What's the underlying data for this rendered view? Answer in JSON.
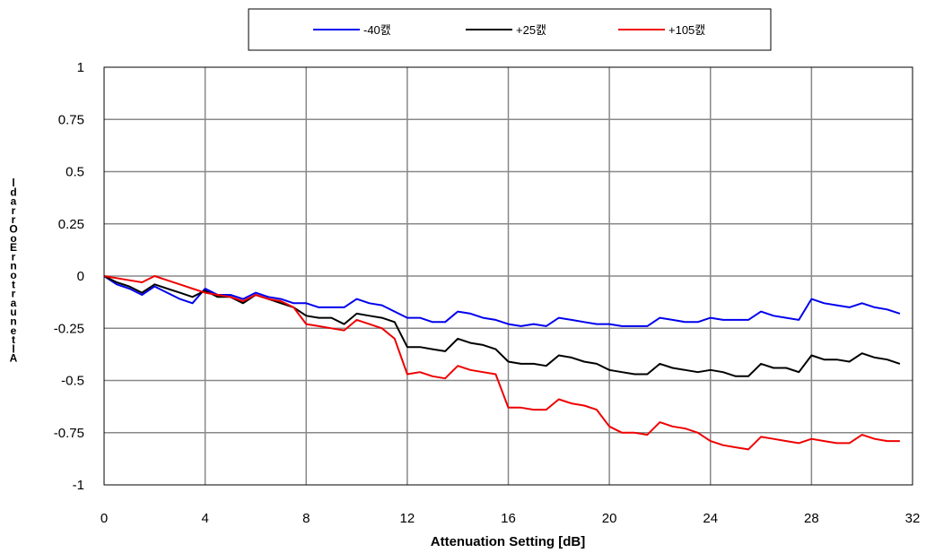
{
  "chart_data": {
    "type": "line",
    "xlabel": "Attenuation Setting [dB]",
    "ylabel": "Error in Relative Phase [deg]",
    "ylabel_rendered": "ldarrOoErnotraunetlA",
    "xlim": [
      0,
      32
    ],
    "ylim": [
      -1,
      1
    ],
    "xticks": [
      0,
      4,
      8,
      12,
      16,
      20,
      24,
      28,
      32
    ],
    "yticks": [
      1,
      0.75,
      0.5,
      0.25,
      0,
      -0.25,
      -0.5,
      -0.75,
      -1
    ],
    "ytick_labels": [
      "1",
      "0.75",
      "0.5",
      "0.25",
      "0",
      "-0.25",
      "-0.5",
      "-0.75",
      "-1"
    ],
    "grid": true,
    "legend_position": "top",
    "series": [
      {
        "name": "-40캜",
        "color": "#0000ee",
        "x": [
          0,
          0.5,
          1,
          1.5,
          2,
          2.5,
          3,
          3.5,
          4,
          4.5,
          5,
          5.5,
          6,
          6.5,
          7,
          7.5,
          8,
          8.5,
          9,
          9.5,
          10,
          10.5,
          11,
          11.5,
          12,
          12.5,
          13,
          13.5,
          14,
          14.5,
          15,
          15.5,
          16,
          16.5,
          17,
          17.5,
          18,
          18.5,
          19,
          19.5,
          20,
          20.5,
          21,
          21.5,
          22,
          22.5,
          23,
          23.5,
          24,
          24.5,
          25,
          25.5,
          26,
          26.5,
          27,
          27.5,
          28,
          28.5,
          29,
          29.5,
          30,
          30.5,
          31,
          31.5
        ],
        "values": [
          0,
          -0.04,
          -0.06,
          -0.09,
          -0.05,
          -0.08,
          -0.11,
          -0.13,
          -0.06,
          -0.09,
          -0.09,
          -0.11,
          -0.08,
          -0.1,
          -0.11,
          -0.13,
          -0.13,
          -0.15,
          -0.15,
          -0.15,
          -0.11,
          -0.13,
          -0.14,
          -0.17,
          -0.2,
          -0.2,
          -0.22,
          -0.22,
          -0.17,
          -0.18,
          -0.2,
          -0.21,
          -0.23,
          -0.24,
          -0.23,
          -0.24,
          -0.2,
          -0.21,
          -0.22,
          -0.23,
          -0.23,
          -0.24,
          -0.24,
          -0.24,
          -0.2,
          -0.21,
          -0.22,
          -0.22,
          -0.2,
          -0.21,
          -0.21,
          -0.21,
          -0.17,
          -0.19,
          -0.2,
          -0.21,
          -0.11,
          -0.13,
          -0.14,
          -0.15,
          -0.13,
          -0.15,
          -0.16,
          -0.18
        ]
      },
      {
        "name": "+25캜",
        "color": "#000000",
        "x": [
          0,
          0.5,
          1,
          1.5,
          2,
          2.5,
          3,
          3.5,
          4,
          4.5,
          5,
          5.5,
          6,
          6.5,
          7,
          7.5,
          8,
          8.5,
          9,
          9.5,
          10,
          10.5,
          11,
          11.5,
          12,
          12.5,
          13,
          13.5,
          14,
          14.5,
          15,
          15.5,
          16,
          16.5,
          17,
          17.5,
          18,
          18.5,
          19,
          19.5,
          20,
          20.5,
          21,
          21.5,
          22,
          22.5,
          23,
          23.5,
          24,
          24.5,
          25,
          25.5,
          26,
          26.5,
          27,
          27.5,
          28,
          28.5,
          29,
          29.5,
          30,
          30.5,
          31,
          31.5
        ],
        "values": [
          0,
          -0.03,
          -0.05,
          -0.08,
          -0.04,
          -0.06,
          -0.08,
          -0.1,
          -0.07,
          -0.1,
          -0.1,
          -0.13,
          -0.09,
          -0.11,
          -0.13,
          -0.15,
          -0.19,
          -0.2,
          -0.2,
          -0.23,
          -0.18,
          -0.19,
          -0.2,
          -0.22,
          -0.34,
          -0.34,
          -0.35,
          -0.36,
          -0.3,
          -0.32,
          -0.33,
          -0.35,
          -0.41,
          -0.42,
          -0.42,
          -0.43,
          -0.38,
          -0.39,
          -0.41,
          -0.42,
          -0.45,
          -0.46,
          -0.47,
          -0.47,
          -0.42,
          -0.44,
          -0.45,
          -0.46,
          -0.45,
          -0.46,
          -0.48,
          -0.48,
          -0.42,
          -0.44,
          -0.44,
          -0.46,
          -0.38,
          -0.4,
          -0.4,
          -0.41,
          -0.37,
          -0.39,
          -0.4,
          -0.42
        ]
      },
      {
        "name": "+105캜",
        "color": "#ee0000",
        "x": [
          0,
          0.5,
          1,
          1.5,
          2,
          2.5,
          3,
          3.5,
          4,
          4.5,
          5,
          5.5,
          6,
          6.5,
          7,
          7.5,
          8,
          8.5,
          9,
          9.5,
          10,
          10.5,
          11,
          11.5,
          12,
          12.5,
          13,
          13.5,
          14,
          14.5,
          15,
          15.5,
          16,
          16.5,
          17,
          17.5,
          18,
          18.5,
          19,
          19.5,
          20,
          20.5,
          21,
          21.5,
          22,
          22.5,
          23,
          23.5,
          24,
          24.5,
          25,
          25.5,
          26,
          26.5,
          27,
          27.5,
          28,
          28.5,
          29,
          29.5,
          30,
          30.5,
          31,
          31.5
        ],
        "values": [
          0,
          -0.01,
          -0.02,
          -0.03,
          0,
          -0.02,
          -0.04,
          -0.06,
          -0.08,
          -0.09,
          -0.1,
          -0.12,
          -0.09,
          -0.11,
          -0.12,
          -0.15,
          -0.23,
          -0.24,
          -0.25,
          -0.26,
          -0.21,
          -0.23,
          -0.25,
          -0.3,
          -0.47,
          -0.46,
          -0.48,
          -0.49,
          -0.43,
          -0.45,
          -0.46,
          -0.47,
          -0.63,
          -0.63,
          -0.64,
          -0.64,
          -0.59,
          -0.61,
          -0.62,
          -0.64,
          -0.72,
          -0.75,
          -0.75,
          -0.76,
          -0.7,
          -0.72,
          -0.73,
          -0.75,
          -0.79,
          -0.81,
          -0.82,
          -0.83,
          -0.77,
          -0.78,
          -0.79,
          -0.8,
          -0.78,
          -0.79,
          -0.8,
          -0.8,
          -0.76,
          -0.78,
          -0.79,
          -0.79
        ]
      }
    ]
  }
}
